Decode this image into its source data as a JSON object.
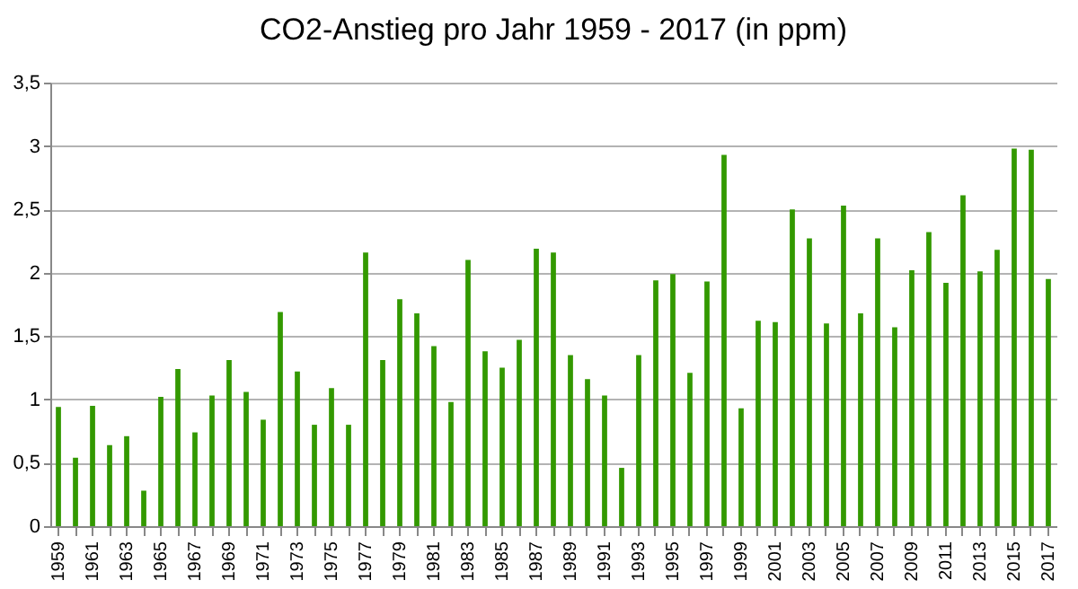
{
  "chart_data": {
    "type": "bar",
    "title": "CO2-Anstieg pro Jahr 1959 - 2017 (in ppm)",
    "categories": [
      "1959",
      null,
      "1961",
      null,
      "1963",
      null,
      "1965",
      null,
      "1967",
      null,
      "1969",
      null,
      "1971",
      null,
      "1973",
      null,
      "1975",
      null,
      "1977",
      null,
      "1979",
      null,
      "1981",
      null,
      "1983",
      null,
      "1985",
      null,
      "1987",
      null,
      "1989",
      null,
      "1991",
      null,
      "1993",
      null,
      "1995",
      null,
      "1997",
      null,
      "1999",
      null,
      "2001",
      null,
      "2003",
      null,
      "2005",
      null,
      "2007",
      null,
      "2009",
      null,
      "2011",
      null,
      "2013",
      null,
      "2015",
      null,
      "2017"
    ],
    "values": [
      0.94,
      0.54,
      0.95,
      0.64,
      0.71,
      0.28,
      1.02,
      1.24,
      0.74,
      1.03,
      1.31,
      1.06,
      0.84,
      1.69,
      1.22,
      0.8,
      1.09,
      0.8,
      2.16,
      1.31,
      1.79,
      1.68,
      1.42,
      0.98,
      2.1,
      1.38,
      1.25,
      1.47,
      2.19,
      2.16,
      1.35,
      1.16,
      1.03,
      0.46,
      1.35,
      1.94,
      1.99,
      1.21,
      1.93,
      2.93,
      0.93,
      1.62,
      1.61,
      2.5,
      2.27,
      1.6,
      2.53,
      1.68,
      2.27,
      1.57,
      2.02,
      2.32,
      1.92,
      2.61,
      2.01,
      2.18,
      2.98,
      2.97,
      1.95
    ],
    "color": "#339900",
    "ylim": [
      0,
      3.5
    ],
    "yticks": [
      0,
      {
        "value": 0.5,
        "label": "0,5"
      },
      1,
      {
        "value": 1.5,
        "label": "1,5"
      },
      2,
      {
        "value": 2.5,
        "label": "2,5"
      },
      3,
      {
        "value": 3.5,
        "label": "3,5"
      }
    ],
    "grid": "y"
  }
}
